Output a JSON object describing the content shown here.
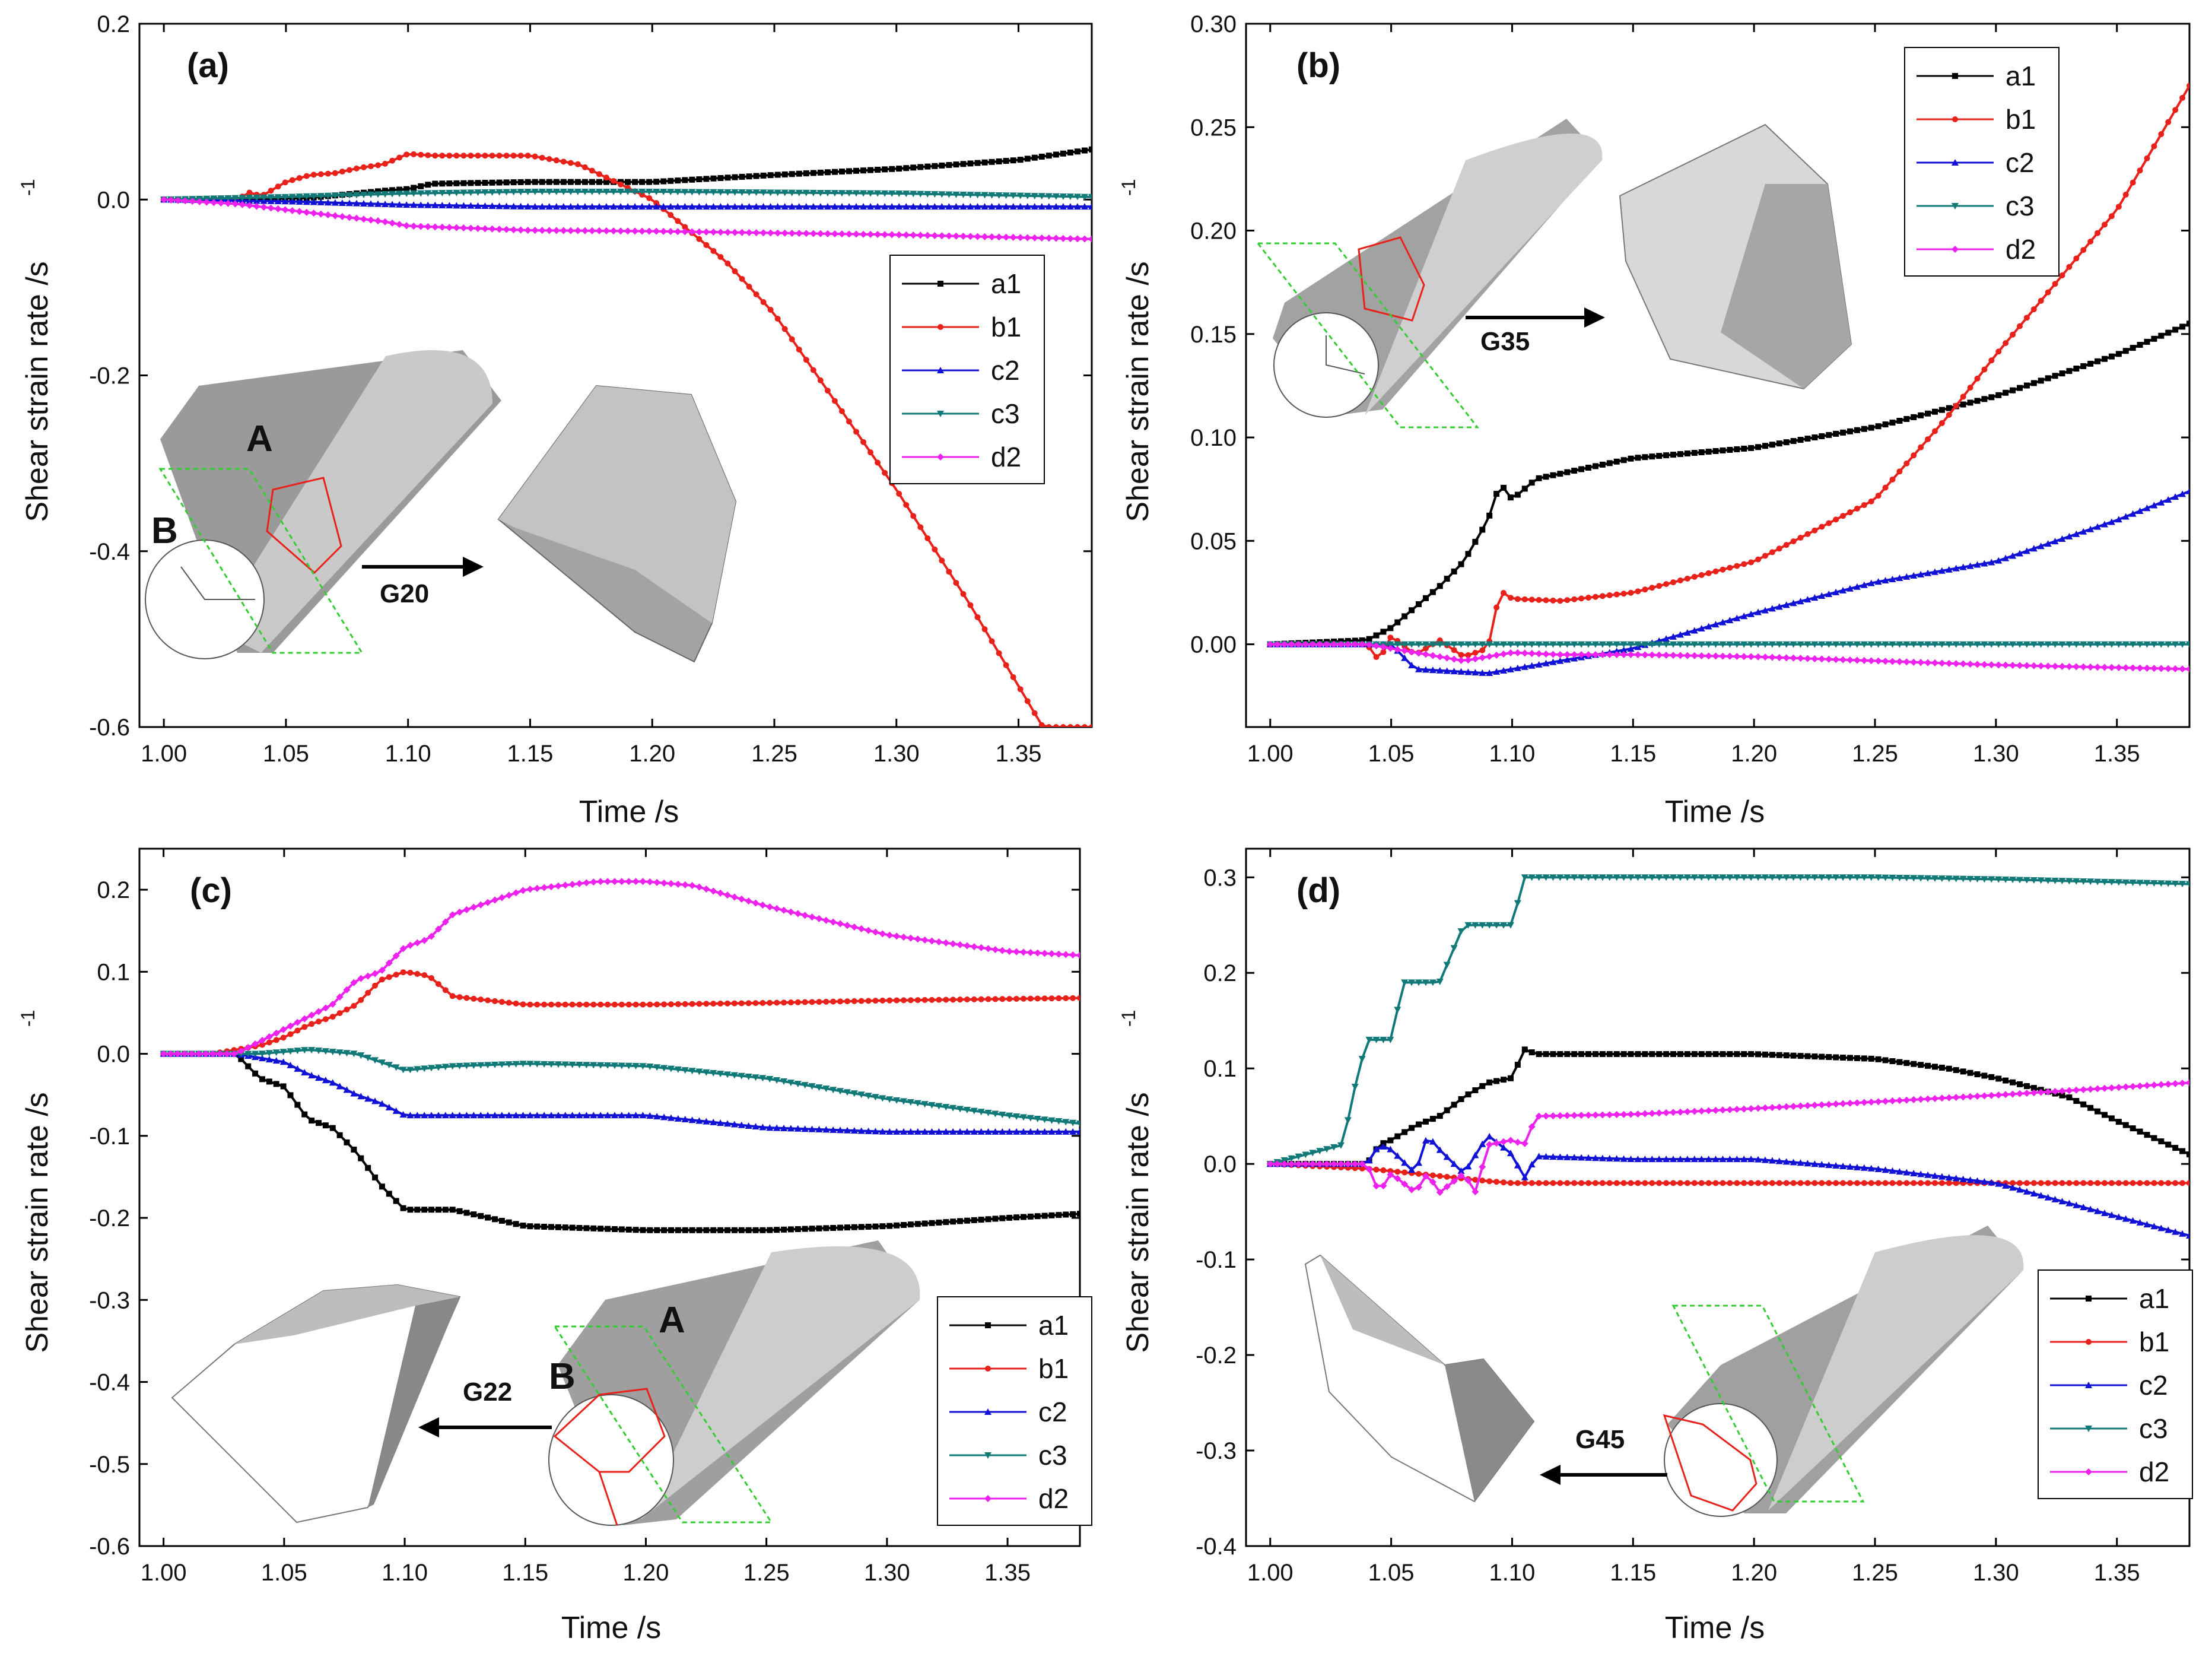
{
  "chart_data": [
    {
      "id": "a",
      "type": "line",
      "panel_label": "(a)",
      "xlabel": "Time  /s",
      "ylabel": "Shear strain rate  /s",
      "ylabel_sup": "-1",
      "xlim": [
        0.99,
        1.38
      ],
      "ylim": [
        -0.6,
        0.2
      ],
      "xticks": [
        1.0,
        1.05,
        1.1,
        1.15,
        1.2,
        1.25,
        1.3,
        1.35
      ],
      "xtick_labels": [
        "1.00",
        "1.05",
        "1.10",
        "1.15",
        "1.20",
        "1.25",
        "1.30",
        "1.35"
      ],
      "yticks": [
        0.2,
        0.0,
        -0.2,
        -0.4,
        -0.6
      ],
      "ytick_labels": [
        "0.2",
        "0.0",
        "-0.2",
        "-0.4",
        "-0.6"
      ],
      "legend_position": "right-middle",
      "series": [
        {
          "name": "a1",
          "color": "#000000",
          "marker": "square",
          "x": [
            1.0,
            1.03,
            1.06,
            1.09,
            1.1,
            1.11,
            1.15,
            1.2,
            1.25,
            1.3,
            1.35,
            1.38
          ],
          "y": [
            0,
            0,
            0.002,
            0.01,
            0.012,
            0.018,
            0.02,
            0.02,
            0.028,
            0.035,
            0.045,
            0.057
          ]
        },
        {
          "name": "b1",
          "color": "#e8211b",
          "marker": "circle",
          "x": [
            1.0,
            1.03,
            1.035,
            1.04,
            1.05,
            1.06,
            1.07,
            1.08,
            1.09,
            1.1,
            1.11,
            1.15,
            1.17,
            1.2,
            1.23,
            1.25,
            1.28,
            1.3,
            1.33,
            1.36
          ],
          "y": [
            0,
            0,
            0.008,
            0.004,
            0.02,
            0.028,
            0.03,
            0.036,
            0.04,
            0.052,
            0.05,
            0.05,
            0.04,
            0.0,
            -0.07,
            -0.13,
            -0.25,
            -0.33,
            -0.46,
            -0.6
          ]
        },
        {
          "name": "c2",
          "color": "#1212d6",
          "marker": "triangle-up",
          "x": [
            1.0,
            1.05,
            1.1,
            1.15,
            1.2,
            1.3,
            1.38
          ],
          "y": [
            0,
            -0.002,
            -0.006,
            -0.008,
            -0.008,
            -0.008,
            -0.008
          ]
        },
        {
          "name": "c3",
          "color": "#117a78",
          "marker": "triangle-down",
          "x": [
            1.0,
            1.05,
            1.1,
            1.15,
            1.2,
            1.3,
            1.38
          ],
          "y": [
            0,
            0.003,
            0.007,
            0.009,
            0.009,
            0.007,
            0.003
          ]
        },
        {
          "name": "d2",
          "color": "#ee22ee",
          "marker": "diamond",
          "x": [
            1.0,
            1.03,
            1.06,
            1.09,
            1.1,
            1.15,
            1.2,
            1.3,
            1.38
          ],
          "y": [
            0,
            -0.005,
            -0.015,
            -0.025,
            -0.03,
            -0.035,
            -0.036,
            -0.04,
            -0.045
          ]
        }
      ],
      "annotations": [
        "A",
        "B",
        "G20"
      ]
    },
    {
      "id": "b",
      "type": "line",
      "panel_label": "(b)",
      "xlabel": "Time  /s",
      "ylabel": "Shear strain rate  /s",
      "ylabel_sup": "-1",
      "xlim": [
        0.99,
        1.38
      ],
      "ylim": [
        -0.04,
        0.3
      ],
      "xticks": [
        1.0,
        1.05,
        1.1,
        1.15,
        1.2,
        1.25,
        1.3,
        1.35
      ],
      "xtick_labels": [
        "1.00",
        "1.05",
        "1.10",
        "1.15",
        "1.20",
        "1.25",
        "1.30",
        "1.35"
      ],
      "yticks": [
        0.3,
        0.25,
        0.2,
        0.15,
        0.1,
        0.05,
        0.0
      ],
      "ytick_labels": [
        "0.30",
        "0.25",
        "0.20",
        "0.15",
        "0.10",
        "0.05",
        "0.00"
      ],
      "legend_position": "top-right",
      "series": [
        {
          "name": "a1",
          "color": "#000000",
          "marker": "square",
          "x": [
            1.0,
            1.04,
            1.05,
            1.06,
            1.07,
            1.08,
            1.09,
            1.095,
            1.1,
            1.11,
            1.15,
            1.2,
            1.25,
            1.3,
            1.35,
            1.38
          ],
          "y": [
            0,
            0.002,
            0.008,
            0.018,
            0.028,
            0.04,
            0.06,
            0.078,
            0.07,
            0.08,
            0.09,
            0.095,
            0.105,
            0.12,
            0.14,
            0.155
          ]
        },
        {
          "name": "b1",
          "color": "#e8211b",
          "marker": "circle",
          "x": [
            1.0,
            1.04,
            1.045,
            1.05,
            1.06,
            1.07,
            1.08,
            1.09,
            1.095,
            1.1,
            1.12,
            1.15,
            1.2,
            1.25,
            1.28,
            1.3,
            1.35,
            1.38
          ],
          "y": [
            0,
            0,
            -0.008,
            0.004,
            -0.005,
            0.002,
            -0.006,
            -0.002,
            0.026,
            0.022,
            0.021,
            0.025,
            0.04,
            0.07,
            0.11,
            0.14,
            0.21,
            0.27
          ]
        },
        {
          "name": "c2",
          "color": "#1212d6",
          "marker": "triangle-up",
          "x": [
            1.0,
            1.05,
            1.06,
            1.09,
            1.1,
            1.12,
            1.15,
            1.2,
            1.25,
            1.3,
            1.35,
            1.38
          ],
          "y": [
            0,
            0,
            -0.012,
            -0.014,
            -0.012,
            -0.008,
            -0.002,
            0.015,
            0.03,
            0.04,
            0.06,
            0.074
          ]
        },
        {
          "name": "c3",
          "color": "#117a78",
          "marker": "triangle-down",
          "x": [
            1.0,
            1.05,
            1.1,
            1.15,
            1.2,
            1.3,
            1.38
          ],
          "y": [
            0,
            0,
            0,
            0,
            0,
            0,
            0
          ]
        },
        {
          "name": "d2",
          "color": "#ee22ee",
          "marker": "diamond",
          "x": [
            1.0,
            1.04,
            1.05,
            1.06,
            1.07,
            1.08,
            1.09,
            1.1,
            1.12,
            1.15,
            1.2,
            1.25,
            1.3,
            1.38
          ],
          "y": [
            0,
            0,
            -0.002,
            -0.004,
            -0.006,
            -0.008,
            -0.006,
            -0.004,
            -0.005,
            -0.005,
            -0.006,
            -0.008,
            -0.01,
            -0.012
          ]
        }
      ],
      "annotations": [
        "G35"
      ]
    },
    {
      "id": "c",
      "type": "line",
      "panel_label": "(c)",
      "xlabel": "Time /s",
      "ylabel": "Shear strain rate  /s",
      "ylabel_sup": "-1",
      "xlim": [
        0.99,
        1.38
      ],
      "ylim": [
        -0.6,
        0.25
      ],
      "xticks": [
        1.0,
        1.05,
        1.1,
        1.15,
        1.2,
        1.25,
        1.3,
        1.35
      ],
      "xtick_labels": [
        "1.00",
        "1.05",
        "1.10",
        "1.15",
        "1.20",
        "1.25",
        "1.30",
        "1.35"
      ],
      "yticks": [
        0.2,
        0.1,
        0.0,
        -0.1,
        -0.2,
        -0.3,
        -0.4,
        -0.5,
        -0.6
      ],
      "ytick_labels": [
        "0.2",
        "0.1",
        "0.0",
        "-0.1",
        "-0.2",
        "-0.3",
        "-0.4",
        "-0.5",
        "-0.6"
      ],
      "legend_position": "bottom-right",
      "series": [
        {
          "name": "a1",
          "color": "#000000",
          "marker": "square",
          "x": [
            1.0,
            1.03,
            1.04,
            1.05,
            1.06,
            1.07,
            1.08,
            1.09,
            1.1,
            1.12,
            1.15,
            1.2,
            1.25,
            1.3,
            1.35,
            1.38
          ],
          "y": [
            0,
            0,
            -0.03,
            -0.04,
            -0.08,
            -0.09,
            -0.12,
            -0.16,
            -0.19,
            -0.19,
            -0.21,
            -0.215,
            -0.215,
            -0.21,
            -0.2,
            -0.195
          ]
        },
        {
          "name": "b1",
          "color": "#e8211b",
          "marker": "circle",
          "x": [
            1.0,
            1.02,
            1.04,
            1.05,
            1.06,
            1.07,
            1.08,
            1.09,
            1.1,
            1.11,
            1.12,
            1.15,
            1.2,
            1.25,
            1.3,
            1.38
          ],
          "y": [
            0,
            0,
            0.01,
            0.02,
            0.035,
            0.045,
            0.06,
            0.09,
            0.1,
            0.095,
            0.07,
            0.06,
            0.06,
            0.062,
            0.065,
            0.068
          ]
        },
        {
          "name": "c2",
          "color": "#1212d6",
          "marker": "triangle-up",
          "x": [
            1.0,
            1.03,
            1.05,
            1.06,
            1.07,
            1.08,
            1.09,
            1.1,
            1.12,
            1.15,
            1.2,
            1.25,
            1.3,
            1.38
          ],
          "y": [
            0,
            0,
            -0.01,
            -0.025,
            -0.035,
            -0.05,
            -0.06,
            -0.075,
            -0.075,
            -0.075,
            -0.075,
            -0.09,
            -0.095,
            -0.095
          ]
        },
        {
          "name": "c3",
          "color": "#117a78",
          "marker": "triangle-down",
          "x": [
            1.0,
            1.04,
            1.06,
            1.08,
            1.1,
            1.12,
            1.15,
            1.2,
            1.25,
            1.3,
            1.35,
            1.38
          ],
          "y": [
            0,
            0,
            0.005,
            0,
            -0.02,
            -0.015,
            -0.012,
            -0.015,
            -0.03,
            -0.055,
            -0.075,
            -0.085
          ]
        },
        {
          "name": "d2",
          "color": "#ee22ee",
          "marker": "diamond",
          "x": [
            1.0,
            1.03,
            1.05,
            1.07,
            1.08,
            1.09,
            1.1,
            1.11,
            1.12,
            1.15,
            1.18,
            1.2,
            1.22,
            1.25,
            1.3,
            1.35,
            1.38
          ],
          "y": [
            0,
            0,
            0.03,
            0.06,
            0.09,
            0.1,
            0.13,
            0.14,
            0.17,
            0.2,
            0.21,
            0.21,
            0.205,
            0.18,
            0.145,
            0.125,
            0.12
          ]
        }
      ],
      "annotations": [
        "A",
        "B",
        "G22"
      ]
    },
    {
      "id": "d",
      "type": "line",
      "panel_label": "(d)",
      "xlabel": "Time /s",
      "ylabel": "Shear strain rate  /s",
      "ylabel_sup": "-1",
      "xlim": [
        0.99,
        1.38
      ],
      "ylim": [
        -0.4,
        0.33
      ],
      "xticks": [
        1.0,
        1.05,
        1.1,
        1.15,
        1.2,
        1.25,
        1.3,
        1.35
      ],
      "xtick_labels": [
        "1.00",
        "1.05",
        "1.10",
        "1.15",
        "1.20",
        "1.25",
        "1.30",
        "1.35"
      ],
      "yticks": [
        0.3,
        0.2,
        0.1,
        0.0,
        -0.1,
        -0.2,
        -0.3,
        -0.4
      ],
      "ytick_labels": [
        "0.3",
        "0.2",
        "0.1",
        "0.0",
        "-0.1",
        "-0.2",
        "-0.3",
        "-0.4"
      ],
      "legend_position": "bottom-right",
      "series": [
        {
          "name": "a1",
          "color": "#000000",
          "marker": "square",
          "x": [
            1.0,
            1.04,
            1.045,
            1.05,
            1.06,
            1.07,
            1.08,
            1.09,
            1.1,
            1.105,
            1.11,
            1.15,
            1.2,
            1.25,
            1.28,
            1.3,
            1.33,
            1.35,
            1.38
          ],
          "y": [
            0,
            0,
            0.02,
            0.025,
            0.04,
            0.05,
            0.07,
            0.085,
            0.09,
            0.12,
            0.115,
            0.115,
            0.115,
            0.11,
            0.1,
            0.09,
            0.07,
            0.045,
            0.01
          ]
        },
        {
          "name": "b1",
          "color": "#e8211b",
          "marker": "circle",
          "x": [
            1.0,
            1.04,
            1.06,
            1.09,
            1.1,
            1.15,
            1.2,
            1.3,
            1.38
          ],
          "y": [
            0,
            -0.005,
            -0.01,
            -0.018,
            -0.02,
            -0.02,
            -0.02,
            -0.02,
            -0.02
          ]
        },
        {
          "name": "c2",
          "color": "#1212d6",
          "marker": "triangle-up",
          "x": [
            1.0,
            1.04,
            1.045,
            1.05,
            1.06,
            1.065,
            1.07,
            1.08,
            1.09,
            1.1,
            1.105,
            1.11,
            1.15,
            1.2,
            1.25,
            1.3,
            1.35,
            1.38
          ],
          "y": [
            0,
            0,
            0.02,
            0.015,
            -0.01,
            0.03,
            0.015,
            -0.01,
            0.03,
            0.01,
            -0.015,
            0.008,
            0.005,
            0.005,
            -0.005,
            -0.02,
            -0.055,
            -0.075
          ]
        },
        {
          "name": "c3",
          "color": "#117a78",
          "marker": "triangle-down",
          "x": [
            1.0,
            1.03,
            1.035,
            1.04,
            1.05,
            1.055,
            1.06,
            1.07,
            1.08,
            1.085,
            1.09,
            1.1,
            1.105,
            1.11,
            1.15,
            1.2,
            1.25,
            1.3,
            1.35,
            1.38
          ],
          "y": [
            0,
            0.02,
            0.08,
            0.13,
            0.13,
            0.19,
            0.19,
            0.19,
            0.25,
            0.25,
            0.25,
            0.25,
            0.3,
            0.3,
            0.3,
            0.3,
            0.3,
            0.298,
            0.295,
            0.293
          ]
        },
        {
          "name": "d2",
          "color": "#ee22ee",
          "marker": "diamond",
          "x": [
            1.0,
            1.04,
            1.045,
            1.05,
            1.06,
            1.065,
            1.07,
            1.08,
            1.085,
            1.09,
            1.1,
            1.105,
            1.11,
            1.15,
            1.2,
            1.25,
            1.3,
            1.35,
            1.38
          ],
          "y": [
            0,
            0,
            -0.03,
            -0.01,
            -0.03,
            -0.01,
            -0.03,
            -0.01,
            -0.03,
            0.02,
            0.025,
            0.02,
            0.05,
            0.052,
            0.058,
            0.065,
            0.072,
            0.08,
            0.085
          ]
        }
      ],
      "annotations": [
        "G45"
      ]
    }
  ]
}
